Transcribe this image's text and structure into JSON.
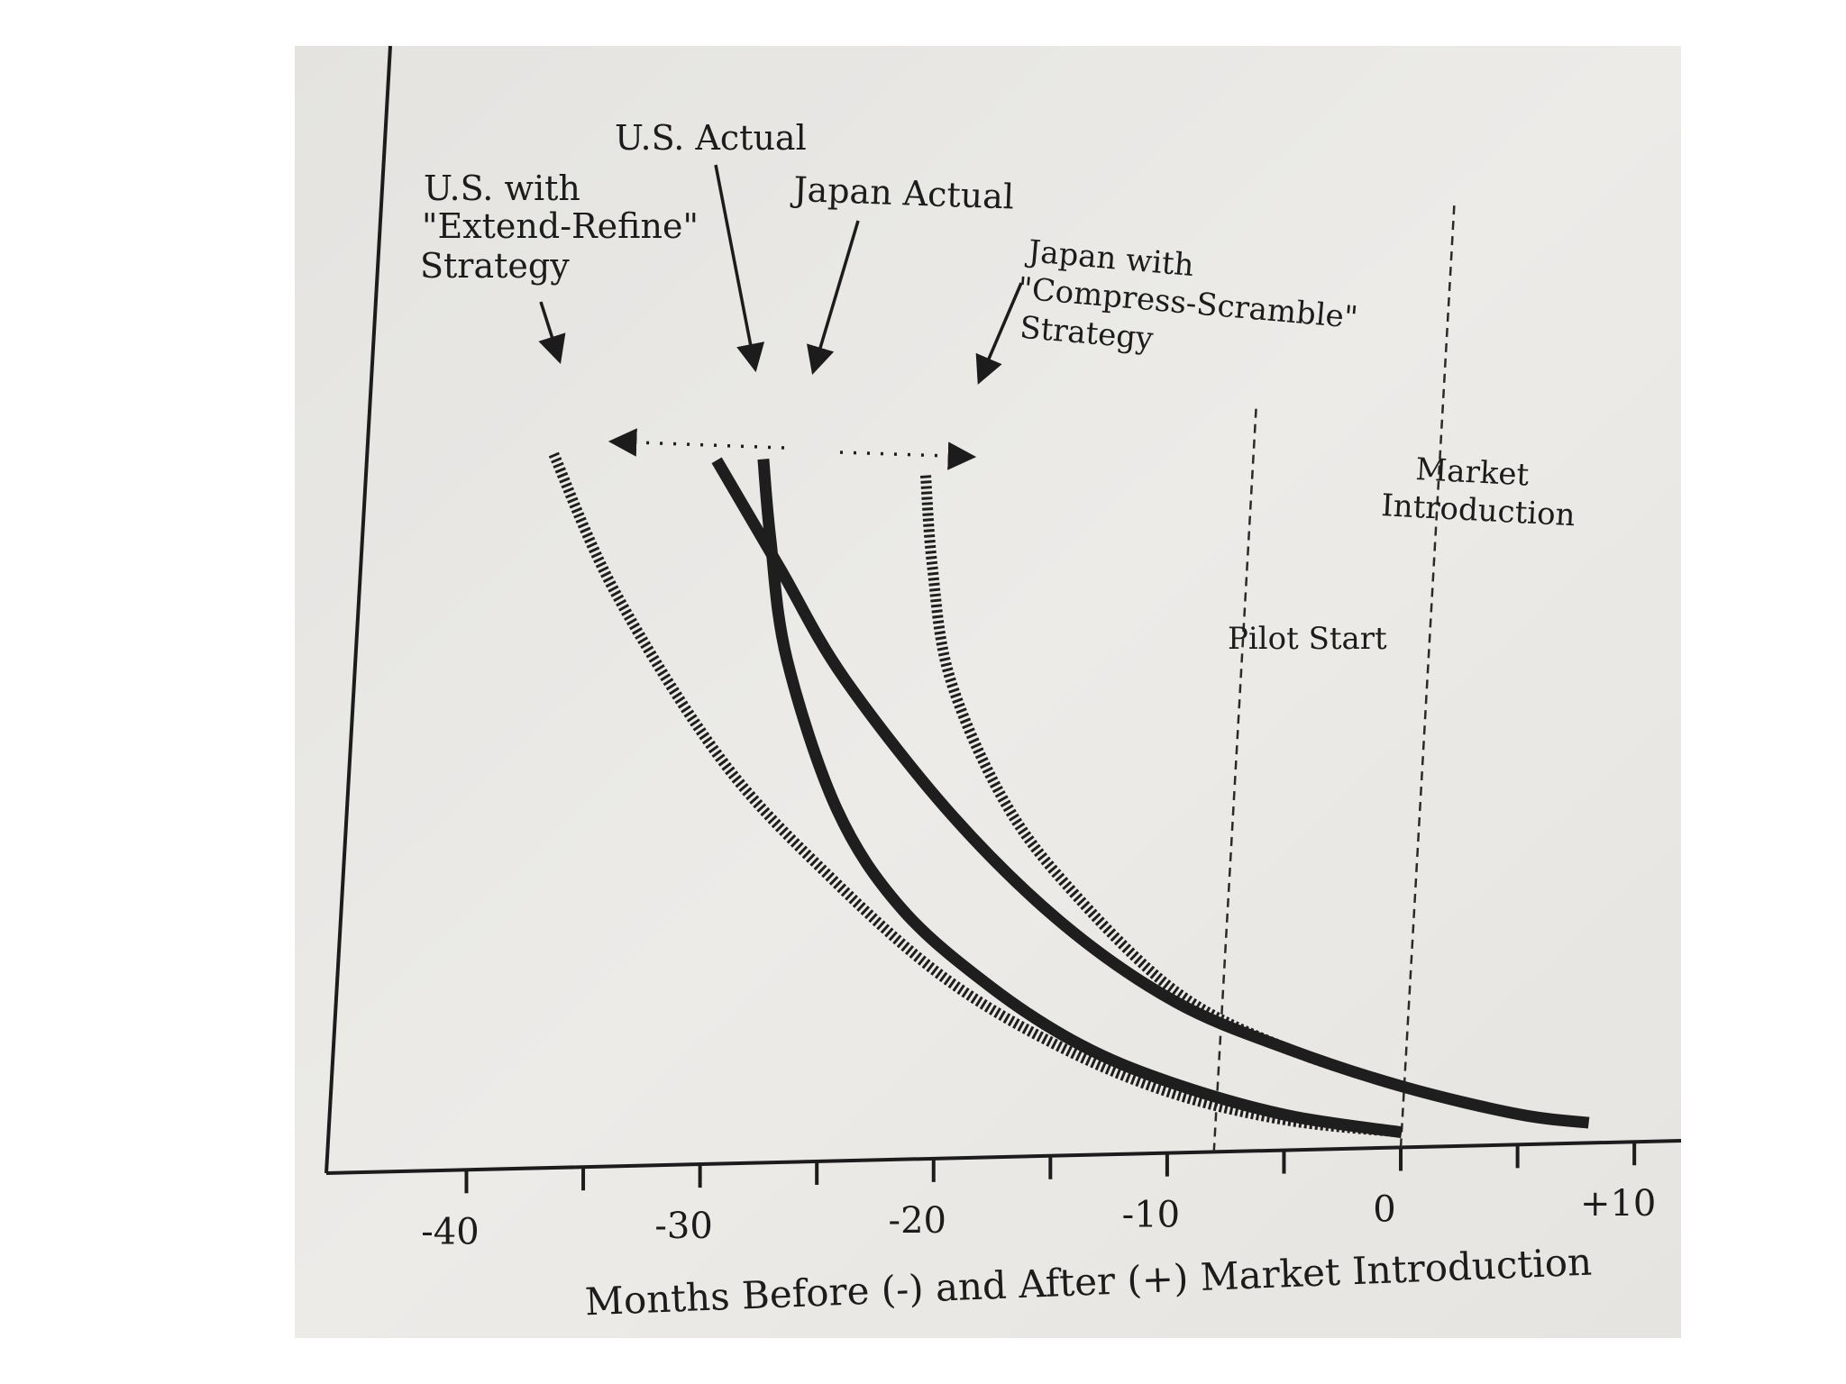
{
  "chart_data": {
    "type": "line",
    "title": "",
    "xlabel": "Months Before (-) and After (+) Market Introduction",
    "ylabel": "",
    "x_ticks": [
      -40,
      -30,
      -20,
      -10,
      0,
      10
    ],
    "x_tick_labels": [
      "-40",
      "-30",
      "-20",
      "-10",
      "0",
      "+10"
    ],
    "xlim": [
      -46,
      12
    ],
    "ylim": [
      0,
      10
    ],
    "series": [
      {
        "name": "U.S. with \"Extend-Refine\" Strategy",
        "style": "hatched",
        "points": [
          [
            -38,
            7.1
          ],
          [
            -35,
            5.7
          ],
          [
            -30,
            4.0
          ],
          [
            -25,
            2.8
          ],
          [
            -20,
            1.8
          ],
          [
            -15,
            1.1
          ],
          [
            -10,
            0.6
          ],
          [
            -5,
            0.3
          ],
          [
            0,
            0.15
          ]
        ]
      },
      {
        "name": "U.S. Actual",
        "style": "solid",
        "points": [
          [
            -31,
            7.0
          ],
          [
            -28,
            5.9
          ],
          [
            -25,
            4.8
          ],
          [
            -20,
            3.4
          ],
          [
            -15,
            2.3
          ],
          [
            -10,
            1.5
          ],
          [
            -5,
            1.0
          ],
          [
            0,
            0.6
          ],
          [
            5,
            0.3
          ],
          [
            8,
            0.2
          ]
        ]
      },
      {
        "name": "Japan Actual",
        "style": "solid",
        "points": [
          [
            -29,
            7.0
          ],
          [
            -28.5,
            6.2
          ],
          [
            -27.5,
            5.0
          ],
          [
            -25,
            3.5
          ],
          [
            -22,
            2.5
          ],
          [
            -18,
            1.7
          ],
          [
            -14,
            1.1
          ],
          [
            -10,
            0.7
          ],
          [
            -5,
            0.35
          ],
          [
            0,
            0.15
          ]
        ]
      },
      {
        "name": "Japan with \"Compress-Scramble\" Strategy",
        "style": "hatched",
        "points": [
          [
            -22,
            6.8
          ],
          [
            -21.5,
            5.9
          ],
          [
            -20.5,
            4.8
          ],
          [
            -18,
            3.6
          ],
          [
            -15,
            2.7
          ],
          [
            -10,
            1.6
          ],
          [
            -5,
            1.0
          ],
          [
            0,
            0.6
          ]
        ]
      }
    ],
    "reference_lines": [
      {
        "label": "Pilot Start",
        "x": -8
      },
      {
        "label": "Market Introduction",
        "x": 0
      }
    ],
    "annotations": {
      "us_extend": [
        "U.S. with",
        "\"Extend-Refine\"",
        "Strategy"
      ],
      "us_actual": "U.S. Actual",
      "japan_actual": "Japan Actual",
      "japan_compress": [
        "Japan with",
        "\"Compress-Scramble\"",
        "Strategy"
      ],
      "pilot_start": "Pilot Start",
      "market_intro": [
        "Market",
        "Introduction"
      ]
    },
    "grid": false,
    "legend": "none"
  },
  "colors": {
    "ink": "#1e1e1e",
    "paper": "#eceae6",
    "background": "#ffffff"
  }
}
